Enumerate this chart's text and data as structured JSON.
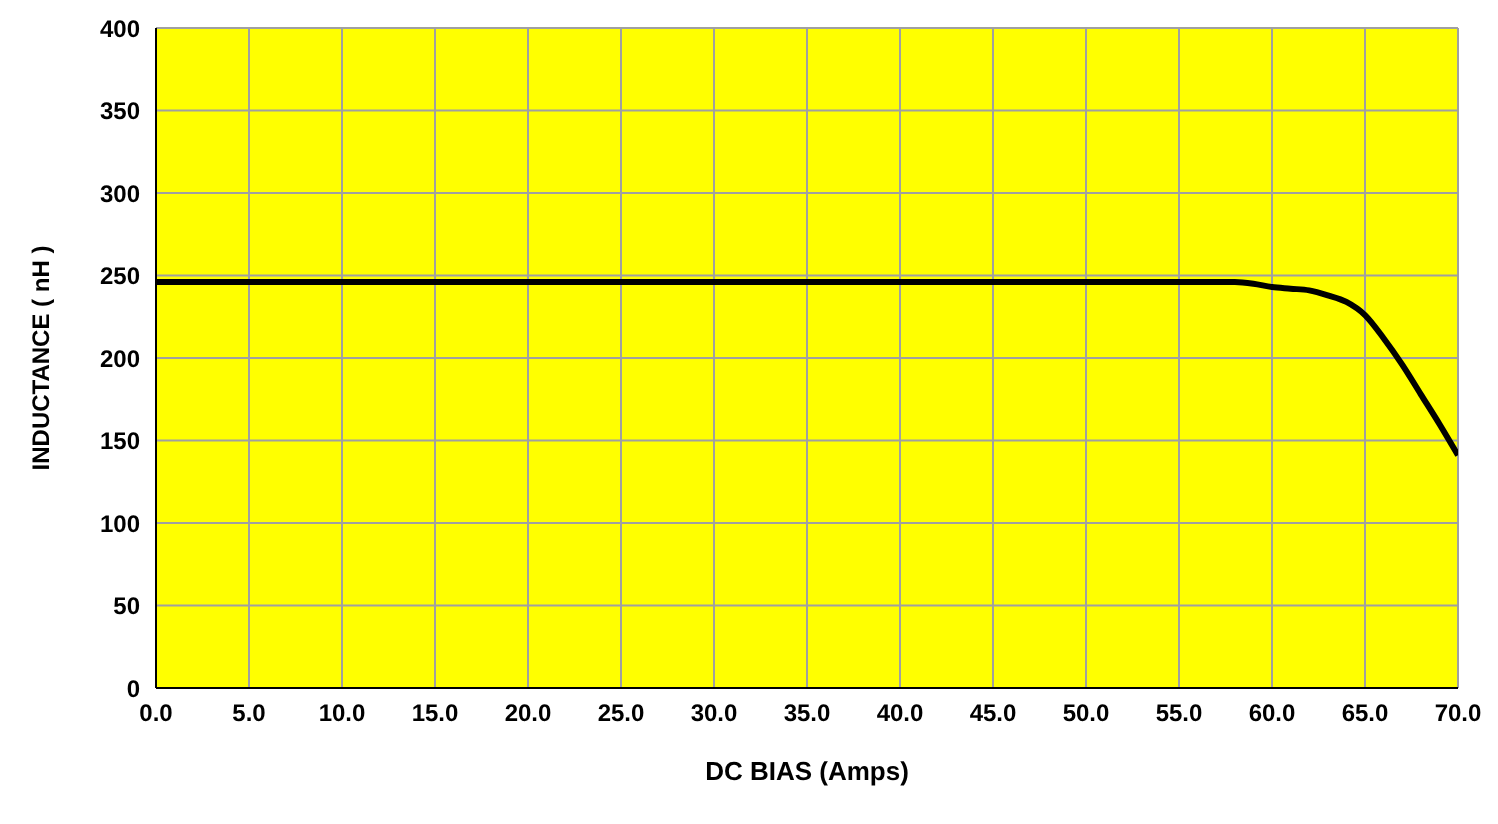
{
  "chart_data": {
    "type": "line",
    "xlabel": "DC BIAS (Amps)",
    "ylabel": "INDUCTANCE ( nH )",
    "x": [
      0,
      10,
      20,
      30,
      40,
      50,
      55,
      57,
      58,
      59,
      60,
      61,
      62,
      63,
      64,
      65,
      66,
      67,
      68,
      69,
      70
    ],
    "series": [
      {
        "color": "#000000",
        "values": [
          246,
          246,
          246,
          246,
          246,
          246,
          246,
          246,
          246,
          245,
          243,
          242,
          241,
          238,
          234,
          226,
          212,
          196,
          178,
          160,
          141
        ]
      }
    ],
    "xlim": [
      0,
      70
    ],
    "ylim": [
      0,
      400
    ],
    "xticks": [
      {
        "value": 0,
        "label": "0.0"
      },
      {
        "value": 5,
        "label": "5.0"
      },
      {
        "value": 10,
        "label": "10.0"
      },
      {
        "value": 15,
        "label": "15.0"
      },
      {
        "value": 20,
        "label": "20.0"
      },
      {
        "value": 25,
        "label": "25.0"
      },
      {
        "value": 30,
        "label": "30.0"
      },
      {
        "value": 35,
        "label": "35.0"
      },
      {
        "value": 40,
        "label": "40.0"
      },
      {
        "value": 45,
        "label": "45.0"
      },
      {
        "value": 50,
        "label": "50.0"
      },
      {
        "value": 55,
        "label": "55.0"
      },
      {
        "value": 60,
        "label": "60.0"
      },
      {
        "value": 65,
        "label": "65.0"
      },
      {
        "value": 70,
        "label": "70.0"
      }
    ],
    "yticks": [
      0,
      50,
      100,
      150,
      200,
      250,
      300,
      350,
      400
    ],
    "grid": true,
    "legend": false,
    "marker": "none",
    "line_style": "solid"
  }
}
